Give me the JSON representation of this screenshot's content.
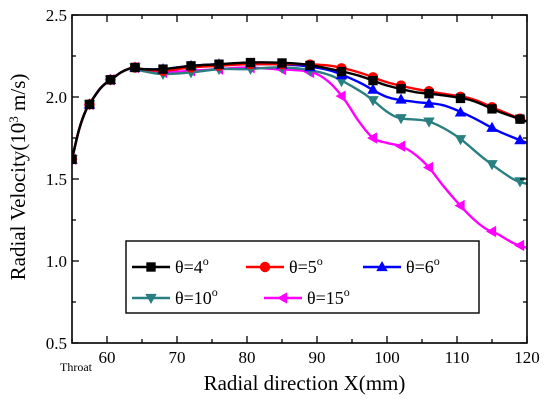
{
  "chart_data": {
    "type": "line",
    "xlabel": "Radial direction X(mm)",
    "ylabel_main": "Radial Velocity",
    "ylabel_unit_open": "(10",
    "ylabel_unit_exp": "3",
    "ylabel_unit_close": " m/s)",
    "xlim": [
      55,
      120
    ],
    "ylim": [
      0.5,
      2.5
    ],
    "xticks": [
      60,
      70,
      80,
      90,
      100,
      110,
      120
    ],
    "yticks": [
      0.5,
      1.0,
      1.5,
      2.0,
      2.5
    ],
    "ytick_labels": [
      "0.5",
      "1.0",
      "1.5",
      "2.0",
      "2.5"
    ],
    "extra_xtick_label": "Throat",
    "grid": false,
    "legend_placement": "lower-center",
    "series": [
      {
        "name": "θ=4°",
        "legend_base": "θ=4",
        "legend_sup": "o",
        "color": "#000000",
        "marker": "square",
        "x": [
          55,
          56,
          57,
          58,
          59,
          60,
          61,
          62,
          63,
          64,
          65,
          68,
          72,
          76,
          80,
          84,
          88,
          92,
          96,
          100,
          104,
          108,
          112,
          116,
          120
        ],
        "y": [
          1.62,
          1.8,
          1.92,
          1.99,
          2.05,
          2.09,
          2.12,
          2.15,
          2.17,
          2.18,
          2.17,
          2.17,
          2.19,
          2.2,
          2.21,
          2.21,
          2.2,
          2.17,
          2.13,
          2.07,
          2.03,
          2.01,
          1.98,
          1.91,
          1.85
        ],
        "marker_x": [
          55,
          57.5,
          60.5,
          64,
          68,
          72,
          76,
          80.5,
          85,
          89,
          93.5,
          98,
          102,
          106,
          110.5,
          115,
          119
        ]
      },
      {
        "name": "θ=5°",
        "legend_base": "θ=5",
        "legend_sup": "o",
        "color": "#ff0000",
        "marker": "circle",
        "x": [
          55,
          56,
          57,
          58,
          59,
          60,
          61,
          62,
          63,
          64,
          65,
          68,
          72,
          76,
          80,
          84,
          88,
          92,
          96,
          100,
          104,
          108,
          112,
          116,
          120
        ],
        "y": [
          1.62,
          1.8,
          1.92,
          1.99,
          2.05,
          2.09,
          2.12,
          2.15,
          2.17,
          2.18,
          2.17,
          2.16,
          2.18,
          2.19,
          2.2,
          2.2,
          2.2,
          2.19,
          2.15,
          2.09,
          2.05,
          2.02,
          1.99,
          1.92,
          1.85
        ],
        "marker_x": [
          55,
          57.5,
          60.5,
          64,
          68,
          72,
          76,
          80.5,
          85,
          89,
          93.5,
          98,
          102,
          106,
          110.5,
          115,
          119
        ]
      },
      {
        "name": "θ=6°",
        "legend_base": "θ=6",
        "legend_sup": "o",
        "color": "#0000ff",
        "marker": "triangle-up",
        "x": [
          55,
          56,
          57,
          58,
          59,
          60,
          61,
          62,
          63,
          64,
          65,
          68,
          72,
          76,
          80,
          84,
          88,
          92,
          96,
          100,
          104,
          108,
          112,
          116,
          120
        ],
        "y": [
          1.62,
          1.8,
          1.92,
          1.99,
          2.05,
          2.09,
          2.12,
          2.15,
          2.17,
          2.18,
          2.17,
          2.17,
          2.19,
          2.2,
          2.2,
          2.2,
          2.19,
          2.16,
          2.09,
          2.0,
          1.97,
          1.95,
          1.88,
          1.79,
          1.72
        ],
        "marker_x": [
          55,
          57.5,
          60.5,
          64,
          68,
          72,
          76,
          80.5,
          85,
          89,
          93.5,
          98,
          102,
          106,
          110.5,
          115,
          119
        ]
      },
      {
        "name": "θ=10°",
        "legend_base": "θ=10",
        "legend_sup": "o",
        "color": "#2a8080",
        "marker": "triangle-down",
        "x": [
          55,
          56,
          57,
          58,
          59,
          60,
          61,
          62,
          63,
          64,
          65,
          68,
          72,
          76,
          80,
          84,
          88,
          92,
          96,
          98,
          100,
          102,
          106,
          110,
          114,
          118,
          120
        ],
        "y": [
          1.62,
          1.8,
          1.92,
          1.99,
          2.05,
          2.09,
          2.12,
          2.15,
          2.17,
          2.18,
          2.16,
          2.14,
          2.15,
          2.17,
          2.17,
          2.18,
          2.17,
          2.13,
          2.04,
          1.98,
          1.91,
          1.87,
          1.85,
          1.76,
          1.62,
          1.5,
          1.47
        ],
        "marker_x": [
          55,
          57.5,
          60.5,
          64,
          68,
          72,
          76,
          80.5,
          85,
          89,
          93.5,
          98,
          102,
          106,
          110.5,
          115,
          119
        ]
      },
      {
        "name": "θ=15°",
        "legend_base": "θ=15",
        "legend_sup": "o",
        "color": "#ff00ff",
        "marker": "triangle-left",
        "x": [
          55,
          56,
          57,
          58,
          59,
          60,
          61,
          62,
          63,
          64,
          65,
          68,
          72,
          76,
          80,
          84,
          88,
          90,
          92,
          94,
          96,
          98,
          100,
          102,
          104,
          106,
          108,
          110,
          112,
          114,
          116,
          118,
          120
        ],
        "y": [
          1.62,
          1.8,
          1.92,
          1.99,
          2.05,
          2.09,
          2.12,
          2.15,
          2.17,
          2.18,
          2.16,
          2.15,
          2.16,
          2.17,
          2.18,
          2.17,
          2.16,
          2.14,
          2.08,
          1.98,
          1.85,
          1.75,
          1.72,
          1.7,
          1.65,
          1.57,
          1.46,
          1.36,
          1.27,
          1.2,
          1.16,
          1.11,
          1.08
        ],
        "marker_x": [
          55,
          57.5,
          60.5,
          64,
          68,
          72,
          76,
          80.5,
          85,
          89,
          93.5,
          98,
          102,
          106,
          110.5,
          115,
          119
        ]
      }
    ]
  }
}
